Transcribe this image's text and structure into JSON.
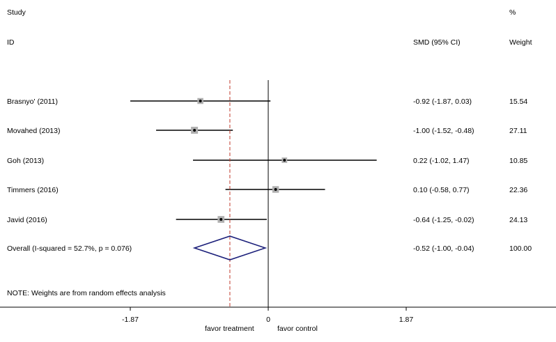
{
  "chart_data": {
    "type": "forest",
    "header": {
      "study_label_line1": "Study",
      "study_label_line2": "ID",
      "effect_label": "SMD (95% CI)",
      "weight_label_line1": "%",
      "weight_label_line2": "Weight"
    },
    "studies": [
      {
        "label": "Brasnyo' (2011)",
        "smd": -0.92,
        "lower": -1.87,
        "upper": 0.03,
        "ci_text": "-0.92 (-1.87, 0.03)",
        "weight": 15.54,
        "weight_text": "15.54"
      },
      {
        "label": "Movahed (2013)",
        "smd": -1.0,
        "lower": -1.52,
        "upper": -0.48,
        "ci_text": "-1.00 (-1.52, -0.48)",
        "weight": 27.11,
        "weight_text": "27.11"
      },
      {
        "label": "Goh (2013)",
        "smd": 0.22,
        "lower": -1.02,
        "upper": 1.47,
        "ci_text": "0.22 (-1.02, 1.47)",
        "weight": 10.85,
        "weight_text": "10.85"
      },
      {
        "label": "Timmers (2016)",
        "smd": 0.1,
        "lower": -0.58,
        "upper": 0.77,
        "ci_text": "0.10 (-0.58, 0.77)",
        "weight": 22.36,
        "weight_text": "22.36"
      },
      {
        "label": "Javid (2016)",
        "smd": -0.64,
        "lower": -1.25,
        "upper": -0.02,
        "ci_text": "-0.64 (-1.25, -0.02)",
        "weight": 24.13,
        "weight_text": "24.13"
      }
    ],
    "overall": {
      "label": "Overall  (I-squared = 52.7%, p = 0.076)",
      "smd": -0.52,
      "lower": -1.0,
      "upper": -0.04,
      "ci_text": "-0.52 (-1.00, -0.04)",
      "weight": 100.0,
      "weight_text": "100.00"
    },
    "note": "NOTE: Weights are from random effects analysis",
    "xaxis": {
      "ticks": [
        -1.87,
        0,
        1.87
      ],
      "tick_labels": [
        "-1.87",
        "0",
        "1.87"
      ],
      "left_label": "favor treatment",
      "right_label": "favor control"
    },
    "colors": {
      "ci_line": "#000000",
      "box": "#b0b0b0",
      "diamond": "#1b1f7a",
      "overall_line": "#c0392b",
      "null_line": "#000000"
    }
  }
}
